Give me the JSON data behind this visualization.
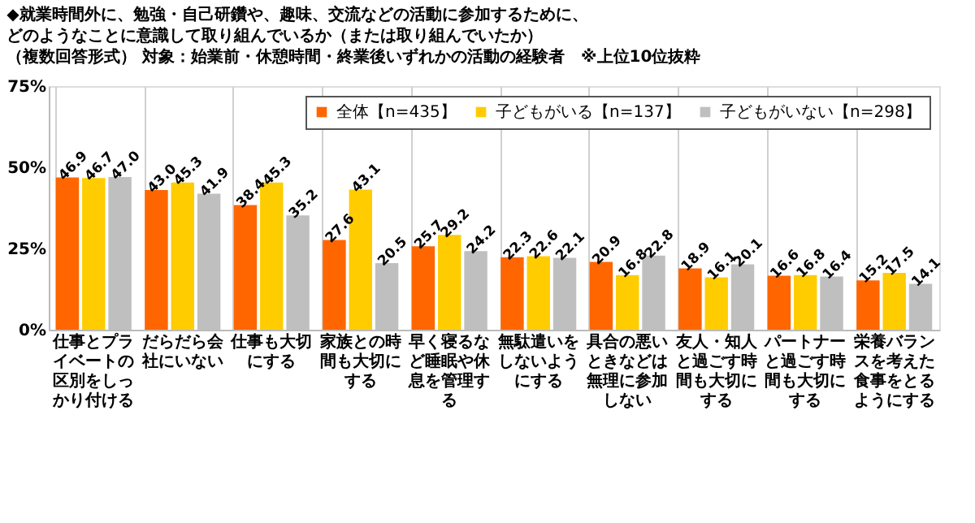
{
  "chart_data": {
    "type": "bar",
    "title": "◆就業時間外に、勉強・自己研鑽や、趣味、交流などの活動に参加するために、どのようなことに意識して取り組んでいるか（または取り組んでいたか）",
    "subtitle": "（複数回答形式） 対象：始業前・休憩時間・終業後いずれかの活動の経験者　※上位10位抜粋",
    "categories": [
      "仕事とプライベートの区別をしっかり付ける",
      "だらだら会社にいない",
      "仕事も大切にする",
      "家族との時間も大切にする",
      "早く寝るなど睡眠や休息を管理する",
      "無駄遣いをしないようにする",
      "具合の悪いときなどは無理に参加しない",
      "友人・知人と過ごす時間も大切にする",
      "パートナーと過ごす時間も大切にする",
      "栄養バランスを考えた食事をとるようにする"
    ],
    "series": [
      {
        "name": "全体【n=435】",
        "color": "#ff6600",
        "values": [
          46.9,
          43.0,
          38.4,
          27.6,
          25.7,
          22.3,
          20.9,
          18.9,
          16.6,
          15.2
        ],
        "value_labels": [
          "46.9",
          "43.0",
          "38.4",
          "27.6",
          "25.7",
          "22.3",
          "20.9",
          "18.9",
          "16.6",
          "15.2"
        ]
      },
      {
        "name": "子どもがいる【n=137】",
        "color": "#ffcc00",
        "values": [
          46.7,
          45.3,
          45.3,
          43.1,
          29.2,
          22.6,
          16.8,
          16.1,
          16.8,
          17.5
        ],
        "value_labels": [
          "46.7",
          "45.3",
          "45.3",
          "43.1",
          "29.2",
          "22.6",
          "16.8",
          "16.1",
          "16.8",
          "17.5"
        ]
      },
      {
        "name": "子どもがいない【n=298】",
        "color": "#bfbfbf",
        "values": [
          47.0,
          41.9,
          35.2,
          20.5,
          24.2,
          22.1,
          22.8,
          20.1,
          16.4,
          14.1
        ],
        "value_labels": [
          "47.0",
          "41.9",
          "35.2",
          "20.5",
          "24.2",
          "22.1",
          "22.8",
          "20.1",
          "16.4",
          "14.1"
        ]
      }
    ],
    "ylim": [
      0,
      75
    ],
    "yticks": [
      {
        "value": 0,
        "label": "0%"
      },
      {
        "value": 25,
        "label": "25%"
      },
      {
        "value": 50,
        "label": "50%"
      },
      {
        "value": 75,
        "label": "75%"
      }
    ],
    "grid": "x",
    "legend": "top right"
  }
}
